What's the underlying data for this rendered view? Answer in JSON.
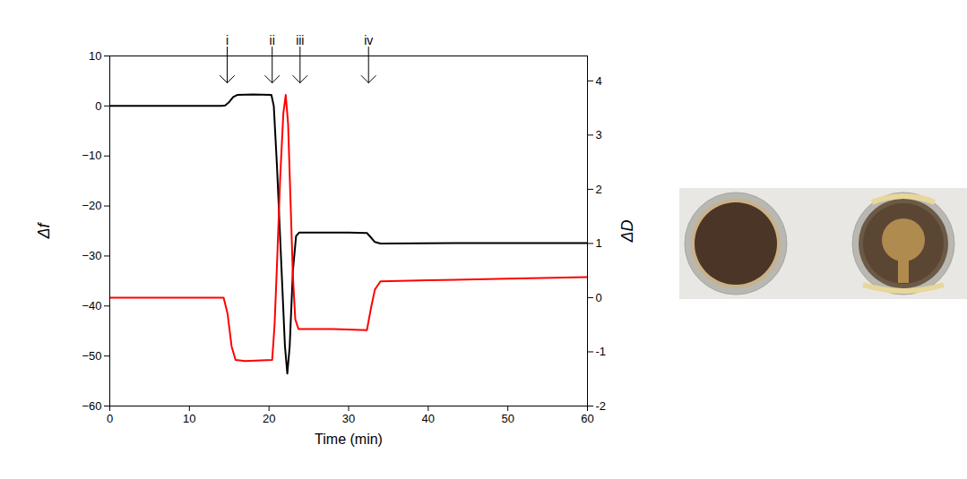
{
  "chart_data": {
    "type": "line",
    "xlabel": "Time (min)",
    "ylabel": "Δf",
    "y2label": "ΔD",
    "xlim": [
      0,
      60
    ],
    "xticks": [
      0,
      10,
      20,
      30,
      40,
      50,
      60
    ],
    "ylim": [
      -60,
      10
    ],
    "yticks": [
      -60,
      -50,
      -40,
      -30,
      -20,
      -10,
      0,
      10
    ],
    "y2lim": [
      -2,
      4.46
    ],
    "y2ticks": [
      -2,
      -1,
      0,
      1,
      2,
      3,
      4
    ],
    "grid": false,
    "annotations": [
      {
        "text": "i",
        "x": 14.75
      },
      {
        "text": "ii",
        "x": 20.4
      },
      {
        "text": "iii",
        "x": 23.9
      },
      {
        "text": "iv",
        "x": 32.5
      }
    ],
    "series": [
      {
        "name": "Δf",
        "color": "#000000",
        "axis": "y",
        "x": [
          0,
          14,
          14.5,
          15,
          15.5,
          16,
          18,
          20.3,
          20.6,
          21,
          21.5,
          22,
          22.3,
          22.6,
          23,
          23.4,
          23.8,
          30,
          32.3,
          32.8,
          33.3,
          34,
          45,
          60
        ],
        "values": [
          0,
          0,
          0.1,
          0.8,
          1.8,
          2.2,
          2.3,
          2.2,
          0,
          -12,
          -30,
          -48,
          -53.5,
          -48,
          -33,
          -26,
          -25.3,
          -25.3,
          -25.4,
          -26.3,
          -27.2,
          -27.5,
          -27.4,
          -27.4
        ]
      },
      {
        "name": "ΔD",
        "color": "#ff0000",
        "axis": "y2",
        "x": [
          0,
          14.3,
          14.8,
          15.3,
          15.8,
          17,
          20.4,
          20.7,
          21,
          21.4,
          21.8,
          22.1,
          22.4,
          22.7,
          23,
          23.3,
          23.7,
          28,
          32.3,
          32.8,
          33.3,
          34,
          40,
          50,
          60
        ],
        "values": [
          0,
          0,
          -0.3,
          -0.9,
          -1.15,
          -1.17,
          -1.15,
          -0.5,
          0.6,
          2.2,
          3.4,
          3.74,
          3.2,
          1.8,
          0.4,
          -0.4,
          -0.58,
          -0.58,
          -0.6,
          -0.2,
          0.15,
          0.3,
          0.32,
          0.35,
          0.38
        ]
      }
    ]
  }
}
